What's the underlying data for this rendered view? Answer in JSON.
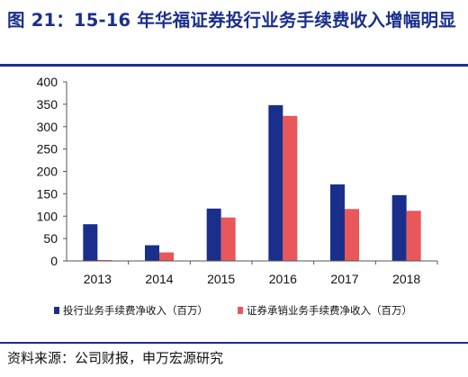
{
  "figure": {
    "title": "图 21：15-16 年华福证券投行业务手续费收入增幅明显",
    "source": "资料来源：公司财报，申万宏源研究"
  },
  "colors": {
    "title": "#1a2f8c",
    "series1": "#1a2f8c",
    "series2": "#e8575a"
  },
  "chart_data": {
    "type": "bar",
    "categories": [
      "2013",
      "2014",
      "2015",
      "2016",
      "2017",
      "2018"
    ],
    "series": [
      {
        "name": "投行业务手续费净收入（百万）",
        "values": [
          82,
          35,
          117,
          348,
          171,
          147
        ]
      },
      {
        "name": "证券承销业务手续费净收入（百万）",
        "values": [
          2,
          19,
          97,
          324,
          116,
          112
        ]
      }
    ],
    "ylim": [
      0,
      400
    ],
    "yticks": [
      "0",
      "50",
      "100",
      "150",
      "200",
      "250",
      "300",
      "350",
      "400"
    ],
    "xlabel": "",
    "ylabel": "",
    "grid": false,
    "legend": "bottom"
  }
}
